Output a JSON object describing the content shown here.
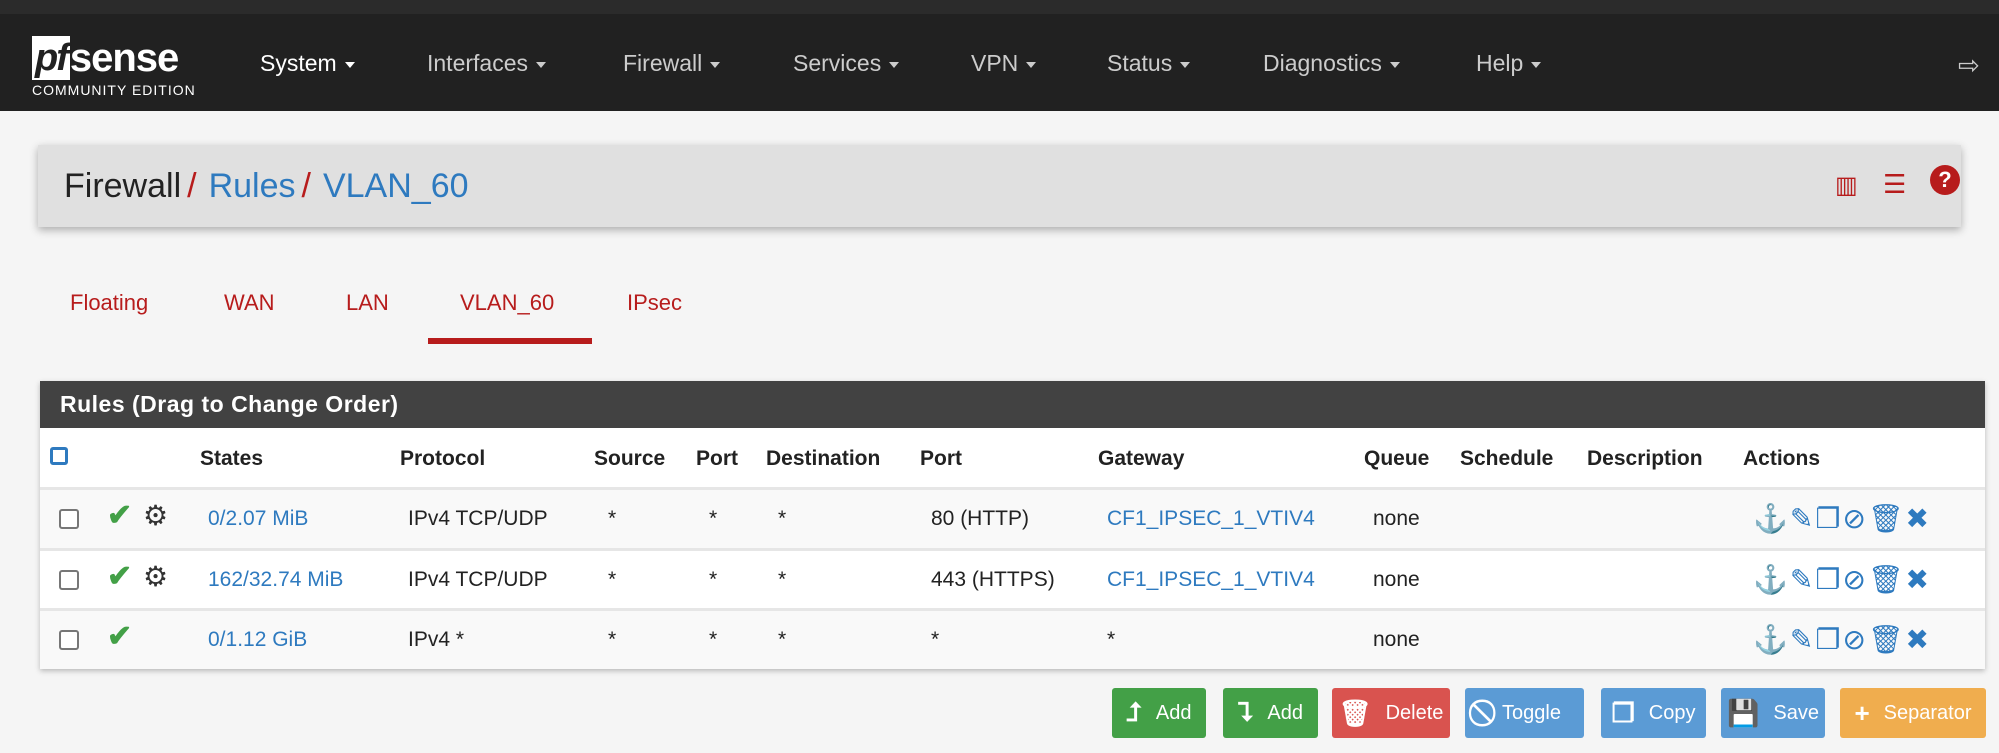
{
  "nav": {
    "logo_main": "pfsense",
    "logo_sub": "COMMUNITY EDITION",
    "items": [
      "System",
      "Interfaces",
      "Firewall",
      "Services",
      "VPN",
      "Status",
      "Diagnostics",
      "Help"
    ],
    "logout_icon": "sign-out-icon"
  },
  "breadcrumb": {
    "root": "Firewall",
    "rules": "Rules",
    "current": "VLAN_60",
    "icons": [
      "bar-chart-icon",
      "list-icon",
      "help-icon"
    ]
  },
  "tabs": {
    "items": [
      "Floating",
      "WAN",
      "LAN",
      "VLAN_60",
      "IPsec"
    ],
    "active": "VLAN_60"
  },
  "rules_panel": {
    "title": "Rules (Drag to Change Order)",
    "columns": [
      "States",
      "Protocol",
      "Source",
      "Port",
      "Destination",
      "Port",
      "Gateway",
      "Queue",
      "Schedule",
      "Description",
      "Actions"
    ],
    "rows": [
      {
        "states": "0/2.07 MiB",
        "protocol": "IPv4 TCP/UDP",
        "source": "*",
        "sport": "*",
        "destination": "*",
        "dport": "80 (HTTP)",
        "gateway": "CF1_IPSEC_1_VTIV4",
        "queue": "none",
        "schedule": "",
        "description": "",
        "advanced": true
      },
      {
        "states": "162/32.74 MiB",
        "protocol": "IPv4 TCP/UDP",
        "source": "*",
        "sport": "*",
        "destination": "*",
        "dport": "443 (HTTPS)",
        "gateway": "CF1_IPSEC_1_VTIV4",
        "queue": "none",
        "schedule": "",
        "description": "",
        "advanced": true
      },
      {
        "states": "0/1.12 GiB",
        "protocol": "IPv4 *",
        "source": "*",
        "sport": "*",
        "destination": "*",
        "dport": "*",
        "gateway": "*",
        "queue": "none",
        "schedule": "",
        "description": "",
        "advanced": false
      }
    ]
  },
  "buttons": {
    "add_top": "Add",
    "add_bottom": "Add",
    "delete": "Delete",
    "toggle": "Toggle",
    "copy": "Copy",
    "save": "Save",
    "separator": "Separator"
  },
  "colors": {
    "brand_red": "#b71c1c",
    "link_blue": "#2e7abf",
    "green": "#43a047",
    "delete": "#d9534f",
    "info": "#5b9bd5",
    "warning": "#f0ad4e"
  }
}
